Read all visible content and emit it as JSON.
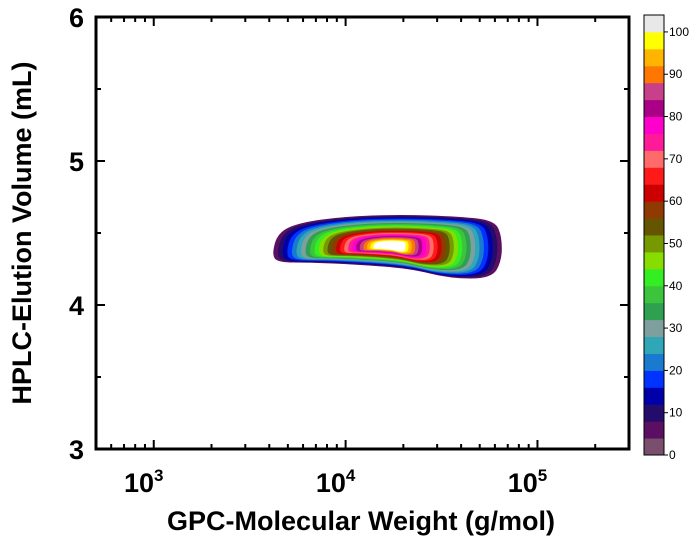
{
  "chart_data": {
    "type": "contour",
    "xlabel": "GPC-Molecular Weight (g/mol)",
    "ylabel": "HPLC-Elution Volume (mL)",
    "x_scale": "log",
    "xlim": [
      500,
      300000
    ],
    "ylim": [
      3,
      6
    ],
    "x_ticks": [
      {
        "value": 1000,
        "base": "10",
        "exp": "3"
      },
      {
        "value": 10000,
        "base": "10",
        "exp": "4"
      },
      {
        "value": 100000,
        "base": "10",
        "exp": "5"
      }
    ],
    "y_ticks": [
      {
        "value": 3,
        "label": "3"
      },
      {
        "value": 4,
        "label": "4"
      },
      {
        "value": 5,
        "label": "5"
      },
      {
        "value": 6,
        "label": "6"
      }
    ],
    "peak": {
      "x": 17000,
      "y": 4.42,
      "value": 100
    },
    "colorbar": {
      "min": 0,
      "max": 100,
      "step": 4,
      "labels": [
        {
          "value": 0,
          "label": "0"
        },
        {
          "value": 10,
          "label": "10"
        },
        {
          "value": 20,
          "label": "20"
        },
        {
          "value": 30,
          "label": "30"
        },
        {
          "value": 40,
          "label": "40"
        },
        {
          "value": 50,
          "label": "50"
        },
        {
          "value": 60,
          "label": "60"
        },
        {
          "value": 70,
          "label": "70"
        },
        {
          "value": 80,
          "label": "80"
        },
        {
          "value": 90,
          "label": "90"
        },
        {
          "value": 100,
          "label": "100"
        }
      ],
      "colors": [
        "#7a4f6e",
        "#5a0f63",
        "#230c6a",
        "#0000aa",
        "#0033ff",
        "#1a7ad0",
        "#30a7b7",
        "#7f9f9f",
        "#2fa04f",
        "#3cc43c",
        "#33ee22",
        "#88dd00",
        "#779900",
        "#665500",
        "#8f3a00",
        "#cc0000",
        "#ff1a1a",
        "#ff6a6a",
        "#ff1a9a",
        "#ff00cc",
        "#aa0088",
        "#c8408a",
        "#ff7700",
        "#ffb400",
        "#ffff00",
        "#e8e8e8"
      ]
    }
  }
}
